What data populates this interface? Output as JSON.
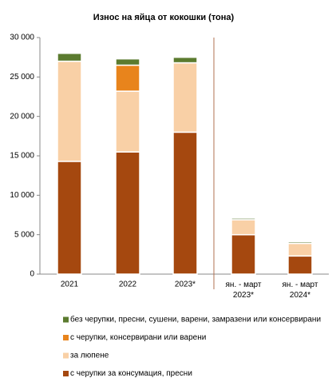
{
  "chart_data": {
    "type": "stacked_bar",
    "title": "Износ на яйца от кокошки (тона)",
    "categories": [
      "2021",
      "2022",
      "2023*",
      "ян. - март\n2023*",
      "ян. - март\n2024*"
    ],
    "series": [
      {
        "name": "с черупки за консумация, пресни",
        "color": "#a5480f",
        "values": [
          14300,
          15500,
          18000,
          5000,
          2300
        ]
      },
      {
        "name": "за люпене",
        "color": "#f9d0a6",
        "values": [
          12700,
          7700,
          8800,
          1900,
          1600
        ]
      },
      {
        "name": "с черупки, консервирани или варени",
        "color": "#e8841c",
        "values": [
          0,
          3300,
          0,
          0,
          0
        ]
      },
      {
        "name": "без черупки, пресни, сушени, варени, замразени или консервирани",
        "color": "#5b7b2f",
        "values": [
          1000,
          800,
          700,
          200,
          200
        ]
      }
    ],
    "ylim": [
      0,
      30000
    ],
    "yticks": [
      0,
      {
        "value": 5000,
        "label": "5 000"
      },
      {
        "value": 10000,
        "label": "10 000"
      },
      {
        "value": 15000,
        "label": "15 000"
      },
      {
        "value": 20000,
        "label": "20 000"
      },
      {
        "value": 25000,
        "label": "25 000"
      },
      {
        "value": 30000,
        "label": "30 000"
      }
    ]
  }
}
